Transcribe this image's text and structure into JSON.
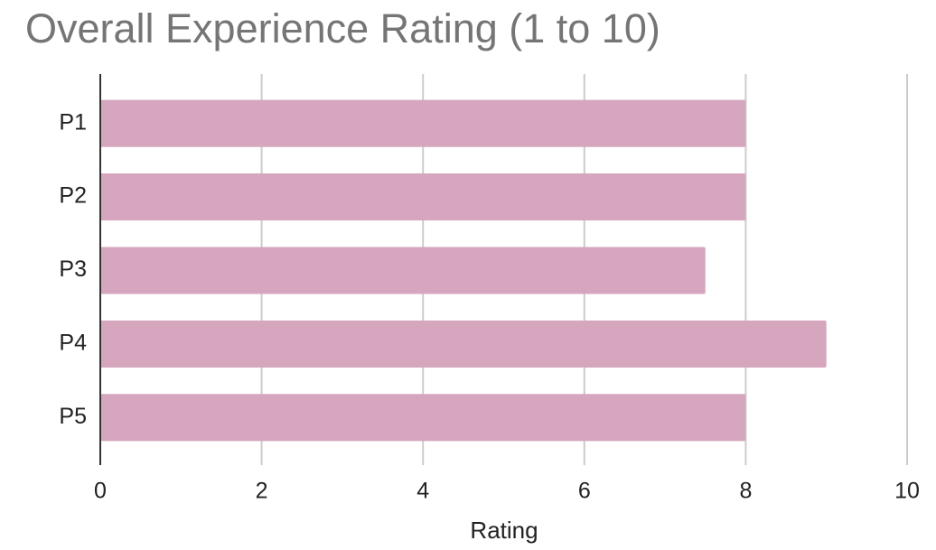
{
  "chart_data": {
    "type": "bar",
    "orientation": "horizontal",
    "title": "Overall Experience Rating (1 to 10)",
    "x_label": "Rating",
    "categories": [
      "P1",
      "P2",
      "P3",
      "P4",
      "P5"
    ],
    "values": [
      8,
      8,
      7.5,
      9,
      8
    ],
    "color": "#d5a6bd",
    "xlim": [
      0,
      10
    ],
    "xticks": [
      0,
      2,
      4,
      6,
      8,
      10
    ],
    "grid": true
  }
}
